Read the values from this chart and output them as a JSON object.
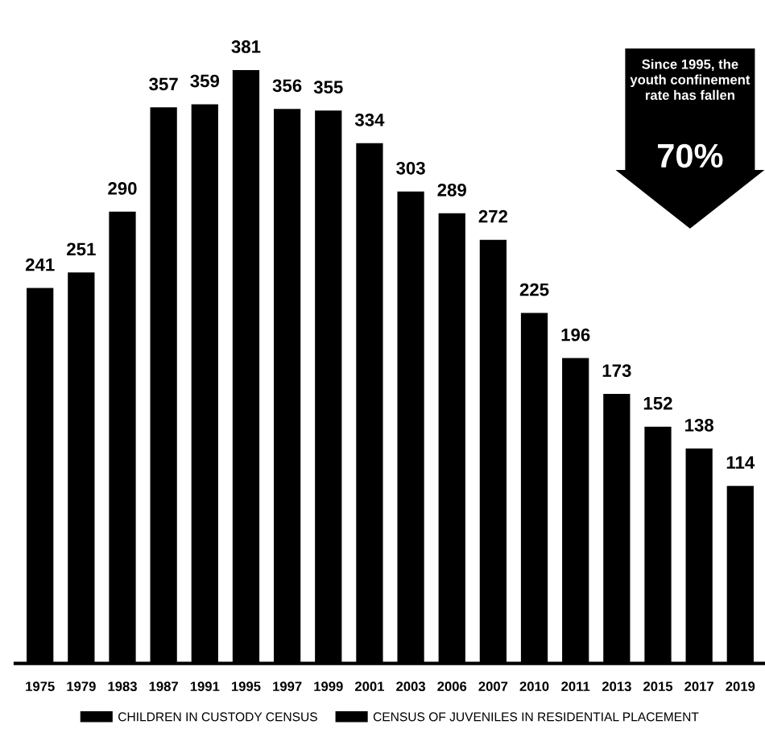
{
  "chart_data": {
    "type": "bar",
    "categories": [
      "1975",
      "1979",
      "1983",
      "1987",
      "1991",
      "1995",
      "1997",
      "1999",
      "2001",
      "2003",
      "2006",
      "2007",
      "2010",
      "2011",
      "2013",
      "2015",
      "2017",
      "2019"
    ],
    "series": [
      {
        "name": "CHILDREN IN CUSTODY CENSUS",
        "color": "#000000",
        "values": [
          241,
          251,
          290,
          357,
          359,
          381,
          null,
          null,
          null,
          null,
          null,
          null,
          null,
          null,
          null,
          null,
          null,
          null
        ]
      },
      {
        "name": "CENSUS OF JUVENILES IN RESIDENTIAL PLACEMENT",
        "color": "#000000",
        "values": [
          null,
          null,
          null,
          null,
          null,
          null,
          356,
          355,
          334,
          303,
          289,
          272,
          225,
          196,
          173,
          152,
          138,
          114
        ]
      }
    ],
    "data_labels": true,
    "legend": "bottom",
    "grid": false,
    "tick_labels": "x",
    "annotations": [
      "Since 1995, the\nyouth confinement\nrate has fallen",
      "70%"
    ]
  }
}
